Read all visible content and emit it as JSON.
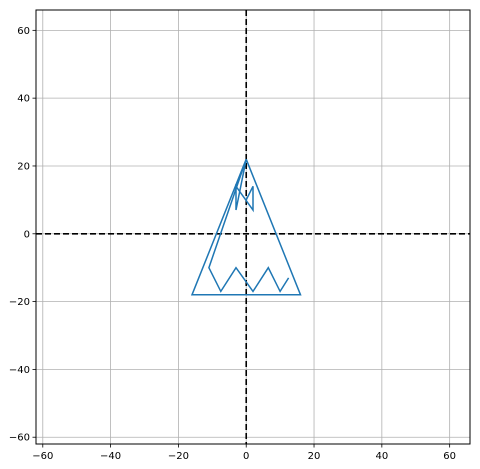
{
  "chart_data": {
    "type": "line",
    "title": "",
    "xlabel": "",
    "ylabel": "",
    "xlim": [
      -62,
      66
    ],
    "ylim": [
      -62,
      66
    ],
    "xticks": [
      -60,
      -40,
      -20,
      0,
      20,
      40,
      60
    ],
    "yticks": [
      -60,
      -40,
      -20,
      0,
      20,
      40,
      60
    ],
    "xtick_labels": [
      "−60",
      "−40",
      "−20",
      "0",
      "20",
      "40",
      "60"
    ],
    "ytick_labels": [
      "−60",
      "−40",
      "−20",
      "0",
      "20",
      "40",
      "60"
    ],
    "grid": true,
    "reference_lines": [
      {
        "orientation": "horizontal",
        "value": 0,
        "style": "dashed",
        "color": "#000000"
      },
      {
        "orientation": "vertical",
        "value": 0,
        "style": "dashed",
        "color": "#000000"
      }
    ],
    "series": [
      {
        "color": "#1f77b4",
        "x": [
          0,
          16,
          -16,
          0,
          -11,
          -7.5,
          -3,
          2,
          6.5,
          10,
          12.5
        ],
        "y": [
          22,
          -18,
          -18,
          22,
          -10,
          -17,
          -10,
          -17,
          -10,
          -17,
          -13
        ]
      },
      {
        "color": "#1f77b4",
        "x": [
          0,
          -3,
          -3,
          2,
          2,
          0
        ],
        "y": [
          22,
          7,
          14,
          7,
          14,
          10
        ]
      }
    ]
  }
}
